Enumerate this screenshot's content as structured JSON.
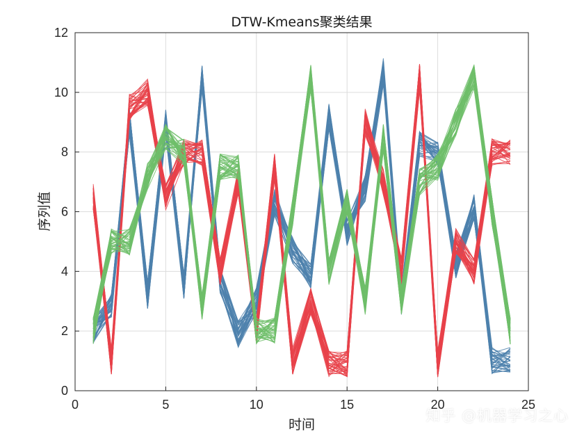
{
  "chart_data": {
    "type": "line",
    "title": "DTW-Kmeans聚类结果",
    "xlabel": "时间",
    "ylabel": "序列值",
    "xlim": [
      0,
      25
    ],
    "ylim": [
      0,
      12
    ],
    "xticks": [
      0,
      5,
      10,
      15,
      20,
      25
    ],
    "yticks": [
      0,
      2,
      4,
      6,
      8,
      10,
      12
    ],
    "grid": true,
    "x": [
      1,
      2,
      3,
      4,
      5,
      6,
      7,
      8,
      9,
      10,
      11,
      12,
      13,
      14,
      15,
      16,
      17,
      18,
      19,
      20,
      21,
      22,
      23,
      24
    ],
    "series": [
      {
        "color": "#4e81ad",
        "values": [
          2.0,
          2.9,
          9.0,
          3.2,
          9.0,
          3.5,
          10.5,
          3.7,
          1.9,
          3.0,
          6.3,
          4.7,
          3.8,
          9.2,
          5.3,
          6.8,
          10.7,
          3.0,
          8.3,
          8.0,
          4.2,
          6.2,
          1.0,
          1.0
        ],
        "count": 40
      },
      {
        "color": "#e8424a",
        "values": [
          6.5,
          1.0,
          9.5,
          10.0,
          6.5,
          8.0,
          8.0,
          4.0,
          7.0,
          2.0,
          7.5,
          1.0,
          3.0,
          0.9,
          0.9,
          9.0,
          7.0,
          4.0,
          10.5,
          0.9,
          5.0,
          4.0,
          8.0,
          8.0
        ],
        "count": 40
      },
      {
        "color": "#6fbe6a",
        "values": [
          2.0,
          5.0,
          5.0,
          7.2,
          8.5,
          8.0,
          2.8,
          7.5,
          7.5,
          2.0,
          2.0,
          6.0,
          10.5,
          4.0,
          6.3,
          3.0,
          8.5,
          3.0,
          7.0,
          7.5,
          9.0,
          10.5,
          6.0,
          2.0
        ],
        "count": 40
      }
    ]
  },
  "watermark": "知乎 @机器学习之心"
}
